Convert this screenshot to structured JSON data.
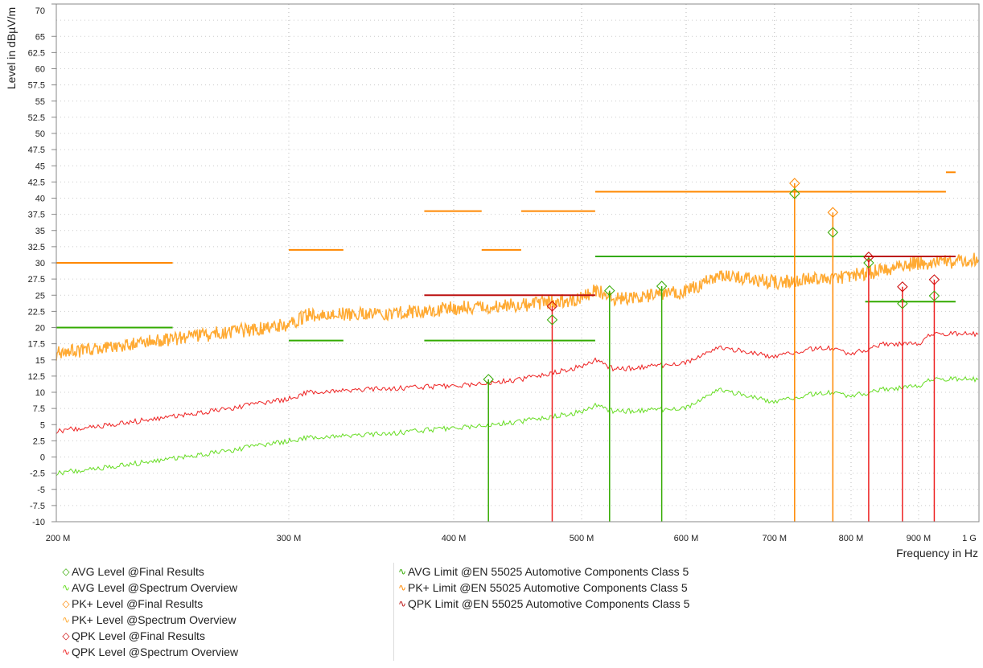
{
  "chart_data": {
    "type": "line",
    "xlabel": "Frequency in Hz",
    "ylabel": "Level in dBµV/m",
    "xscale": "log",
    "xlim_mhz": [
      200,
      1000
    ],
    "ylim": [
      -10,
      70
    ],
    "grid": true,
    "legend_placement": "bottom",
    "x_ticks": [
      {
        "v": 200,
        "label": "200 M"
      },
      {
        "v": 300,
        "label": "300 M"
      },
      {
        "v": 400,
        "label": "400 M"
      },
      {
        "v": 500,
        "label": "500 M"
      },
      {
        "v": 600,
        "label": "600 M"
      },
      {
        "v": 700,
        "label": "700 M"
      },
      {
        "v": 800,
        "label": "800 M"
      },
      {
        "v": 900,
        "label": "900 M"
      },
      {
        "v": 1000,
        "label": "1 G"
      }
    ],
    "y_ticks": [
      "70",
      "65",
      "62.5",
      "60",
      "57.5",
      "55",
      "52.5",
      "50",
      "47.5",
      "45",
      "42.5",
      "40",
      "37.5",
      "35",
      "32.5",
      "30",
      "27.5",
      "25",
      "22.5",
      "20",
      "17.5",
      "15",
      "12.5",
      "10",
      "7.5",
      "5",
      "2.5",
      "0",
      "-2.5",
      "-5",
      "-7.5",
      "-10"
    ],
    "colors": {
      "avg": "#33aa00",
      "avg_trace": "#66dd22",
      "pk": "#ff8800",
      "pk_trace": "#ffaa33",
      "qpk": "#cc0000",
      "qpk_trace": "#ee2222",
      "qpk_limit": "#bb1111"
    },
    "limits": {
      "avg": [
        {
          "f": [
            200,
            245
          ],
          "v": 20
        },
        {
          "f": [
            300,
            330
          ],
          "v": 18
        },
        {
          "f": [
            380,
            512
          ],
          "v": 18
        },
        {
          "f": [
            512,
            944
          ],
          "v": 31
        },
        {
          "f": [
            820,
            960
          ],
          "v": 24
        }
      ],
      "pk": [
        {
          "f": [
            200,
            245
          ],
          "v": 30
        },
        {
          "f": [
            300,
            330
          ],
          "v": 32
        },
        {
          "f": [
            380,
            420
          ],
          "v": 38
        },
        {
          "f": [
            420,
            450
          ],
          "v": 32
        },
        {
          "f": [
            450,
            512
          ],
          "v": 38
        },
        {
          "f": [
            512,
            944
          ],
          "v": 41
        },
        {
          "f": [
            944,
            960
          ],
          "v": 44
        }
      ],
      "qpk": [
        {
          "f": [
            380,
            512
          ],
          "v": 25
        },
        {
          "f": [
            820,
            960
          ],
          "v": 31
        }
      ]
    },
    "spectrum": {
      "f": [
        200,
        250,
        300,
        310,
        350,
        400,
        450,
        500,
        512,
        530,
        600,
        635,
        700,
        760,
        800,
        850,
        900,
        920,
        1000
      ],
      "pk": [
        16,
        18.5,
        20.5,
        22,
        22,
        23,
        23.5,
        24.5,
        26,
        24.5,
        25.5,
        28,
        27,
        27.5,
        28,
        29,
        30,
        30,
        30.5
      ],
      "qpk": [
        4,
        6.5,
        9,
        10,
        10.5,
        11,
        12,
        14,
        15,
        13.5,
        14.5,
        17,
        15.5,
        17,
        16,
        17.5,
        17.5,
        19,
        19
      ],
      "avg": [
        -2.5,
        0,
        2.5,
        3,
        3.5,
        4.5,
        5.5,
        7,
        8,
        7,
        7.5,
        10.5,
        8.5,
        10,
        9.5,
        10.5,
        11,
        12,
        12
      ]
    },
    "final_results": [
      {
        "f": 425,
        "avg": 12
      },
      {
        "f": 475,
        "qpk": 23.3,
        "avg": 21.2
      },
      {
        "f": 525,
        "avg": 25.7
      },
      {
        "f": 575,
        "avg": 26.4
      },
      {
        "f": 725,
        "pk": 42.3,
        "avg": 40.7
      },
      {
        "f": 775,
        "pk": 37.8,
        "avg": 34.7
      },
      {
        "f": 825,
        "qpk": 30.9,
        "avg": 30
      },
      {
        "f": 875,
        "qpk": 26.3,
        "avg": 23.7
      },
      {
        "f": 925,
        "qpk": 27.4,
        "avg": 24.9
      }
    ]
  },
  "legend": {
    "left": [
      {
        "label": "AVG Level @Final Results",
        "sym": "◇",
        "color": "#33aa00"
      },
      {
        "label": "AVG Level @Spectrum Overview",
        "sym": "∿",
        "color": "#66dd22"
      },
      {
        "label": "PK+ Level @Final Results",
        "sym": "◇",
        "color": "#ff8800"
      },
      {
        "label": "PK+ Level @Spectrum Overview",
        "sym": "∿",
        "color": "#ffaa33"
      },
      {
        "label": "QPK Level @Final Results",
        "sym": "◇",
        "color": "#cc0000"
      },
      {
        "label": "QPK Level @Spectrum Overview",
        "sym": "∿",
        "color": "#ee2222"
      }
    ],
    "right": [
      {
        "label": "AVG Limit @EN 55025 Automotive Components Class 5",
        "sym": "∿",
        "color": "#33aa00"
      },
      {
        "label": "PK+ Limit @EN 55025 Automotive Components Class 5",
        "sym": "∿",
        "color": "#ff8800"
      },
      {
        "label": "QPK Limit @EN 55025 Automotive Components Class 5",
        "sym": "∿",
        "color": "#bb1111"
      }
    ]
  }
}
